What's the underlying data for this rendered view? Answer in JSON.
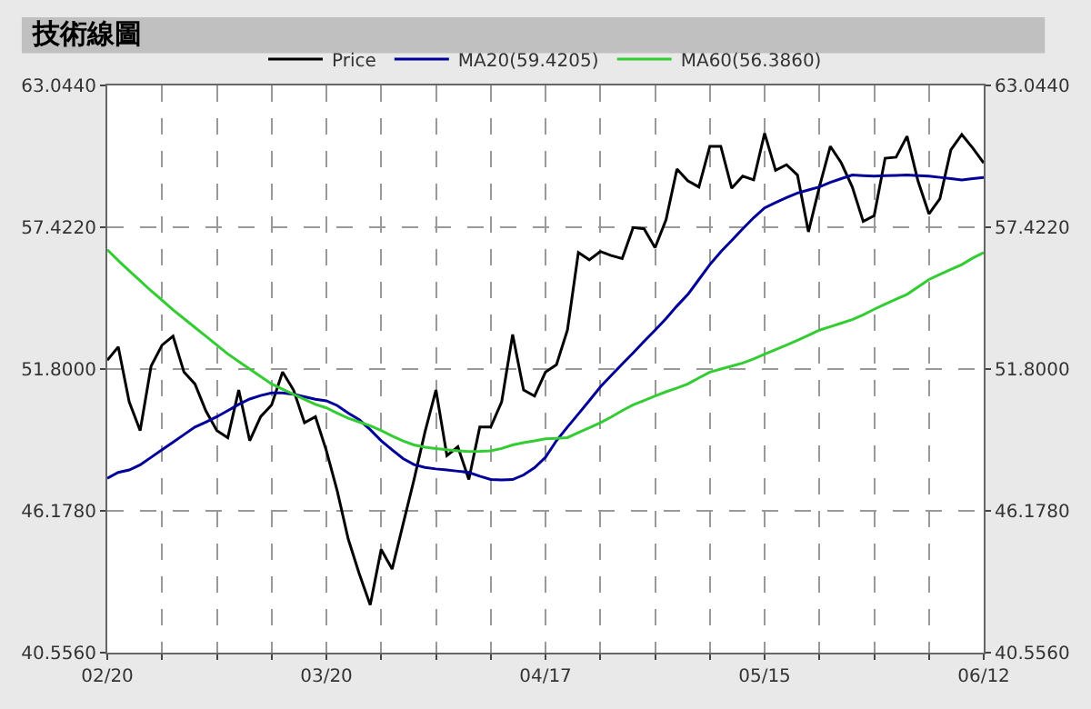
{
  "chart_data": {
    "type": "line",
    "title": "技術線圖",
    "categories": [
      "02/20",
      null,
      null,
      null,
      null,
      null,
      null,
      null,
      null,
      null,
      null,
      null,
      null,
      null,
      null,
      null,
      null,
      null,
      null,
      null,
      "03/20",
      null,
      null,
      null,
      null,
      null,
      null,
      null,
      null,
      null,
      null,
      null,
      null,
      null,
      null,
      null,
      null,
      null,
      null,
      null,
      "04/17",
      null,
      null,
      null,
      null,
      null,
      null,
      null,
      null,
      null,
      null,
      null,
      null,
      null,
      null,
      null,
      null,
      null,
      null,
      null,
      "05/15",
      null,
      null,
      null,
      null,
      null,
      null,
      null,
      null,
      null,
      null,
      null,
      null,
      null,
      null,
      null,
      null,
      null,
      null,
      null,
      "06/12"
    ],
    "series": [
      {
        "name": "Price",
        "color": "#000000",
        "values": [
          52.15,
          52.68,
          50.5,
          49.36,
          51.92,
          52.75,
          53.1,
          51.68,
          51.21,
          50.14,
          49.36,
          49.08,
          50.97,
          48.96,
          49.91,
          50.38,
          51.68,
          50.97,
          49.67,
          49.91,
          48.56,
          46.95,
          45.05,
          43.68,
          42.45,
          44.65,
          43.87,
          45.65,
          47.42,
          49.31,
          50.97,
          48.37,
          48.72,
          47.42,
          49.5,
          49.5,
          50.5,
          53.17,
          50.97,
          50.73,
          51.68,
          51.97,
          53.34,
          56.42,
          56.13,
          56.46,
          56.3,
          56.18,
          57.41,
          57.36,
          56.61,
          57.72,
          59.73,
          59.26,
          59.02,
          60.63,
          60.63,
          58.97,
          59.45,
          59.3,
          61.15,
          59.68,
          59.9,
          59.49,
          57.24,
          59.02,
          60.63,
          59.97,
          59.02,
          57.65,
          57.88,
          60.16,
          60.2,
          61.03,
          59.26,
          57.95,
          58.55,
          60.49,
          61.1,
          60.56,
          59.97
        ]
      },
      {
        "name": "MA20(59.4205)",
        "color": "#000099",
        "values": [
          47.47,
          47.7,
          47.8,
          48.0,
          48.3,
          48.6,
          48.9,
          49.2,
          49.5,
          49.7,
          49.91,
          50.15,
          50.4,
          50.61,
          50.75,
          50.85,
          50.85,
          50.8,
          50.7,
          50.6,
          50.54,
          50.35,
          50.05,
          49.79,
          49.4,
          48.96,
          48.6,
          48.25,
          48.01,
          47.9,
          47.84,
          47.8,
          47.75,
          47.7,
          47.55,
          47.42,
          47.4,
          47.42,
          47.6,
          47.89,
          48.3,
          48.96,
          49.5,
          50.02,
          50.55,
          51.09,
          51.55,
          52.0,
          52.44,
          52.9,
          53.34,
          53.8,
          54.3,
          54.76,
          55.35,
          55.94,
          56.45,
          56.9,
          57.36,
          57.8,
          58.19,
          58.4,
          58.6,
          58.78,
          58.9,
          59.02,
          59.2,
          59.35,
          59.49,
          59.47,
          59.45,
          59.47,
          59.48,
          59.49,
          59.47,
          59.45,
          59.4,
          59.35,
          59.3,
          59.35,
          59.4
        ]
      },
      {
        "name": "MA60(56.3860)",
        "color": "#33cc33",
        "values": [
          56.53,
          56.1,
          55.7,
          55.3,
          54.9,
          54.53,
          54.15,
          53.8,
          53.45,
          53.1,
          52.75,
          52.4,
          52.1,
          51.8,
          51.5,
          51.21,
          51.0,
          50.8,
          50.6,
          50.4,
          50.26,
          50.05,
          49.85,
          49.7,
          49.55,
          49.36,
          49.15,
          48.95,
          48.79,
          48.7,
          48.65,
          48.6,
          48.56,
          48.53,
          48.54,
          48.56,
          48.65,
          48.79,
          48.88,
          48.95,
          49.03,
          49.05,
          49.08,
          49.28,
          49.47,
          49.67,
          49.9,
          50.15,
          50.38,
          50.55,
          50.73,
          50.9,
          51.05,
          51.21,
          51.45,
          51.68,
          51.8,
          51.92,
          52.04,
          52.2,
          52.39,
          52.57,
          52.75,
          52.94,
          53.14,
          53.34,
          53.48,
          53.62,
          53.76,
          53.95,
          54.17,
          54.37,
          54.57,
          54.76,
          55.05,
          55.35,
          55.55,
          55.75,
          55.94,
          56.2,
          56.42
        ]
      }
    ],
    "ylim": [
      40.556,
      63.044
    ],
    "yticks": [
      {
        "value": 40.556,
        "label": "40.5560"
      },
      {
        "value": 46.178,
        "label": "46.1780"
      },
      {
        "value": 51.8,
        "label": "51.8000"
      },
      {
        "value": 57.422,
        "label": "57.4220"
      },
      {
        "value": 63.044,
        "label": "63.0440"
      }
    ],
    "y2lim": [
      40.556,
      63.044
    ],
    "y2ticks": [
      {
        "value": 40.556,
        "label": "40.5560"
      },
      {
        "value": 46.178,
        "label": "46.1780"
      },
      {
        "value": 51.8,
        "label": "51.8000"
      },
      {
        "value": 57.422,
        "label": "57.4220"
      },
      {
        "value": 63.044,
        "label": "63.0440"
      }
    ],
    "grid": true,
    "legend": "top",
    "marker": "none",
    "line_style": "solid"
  }
}
